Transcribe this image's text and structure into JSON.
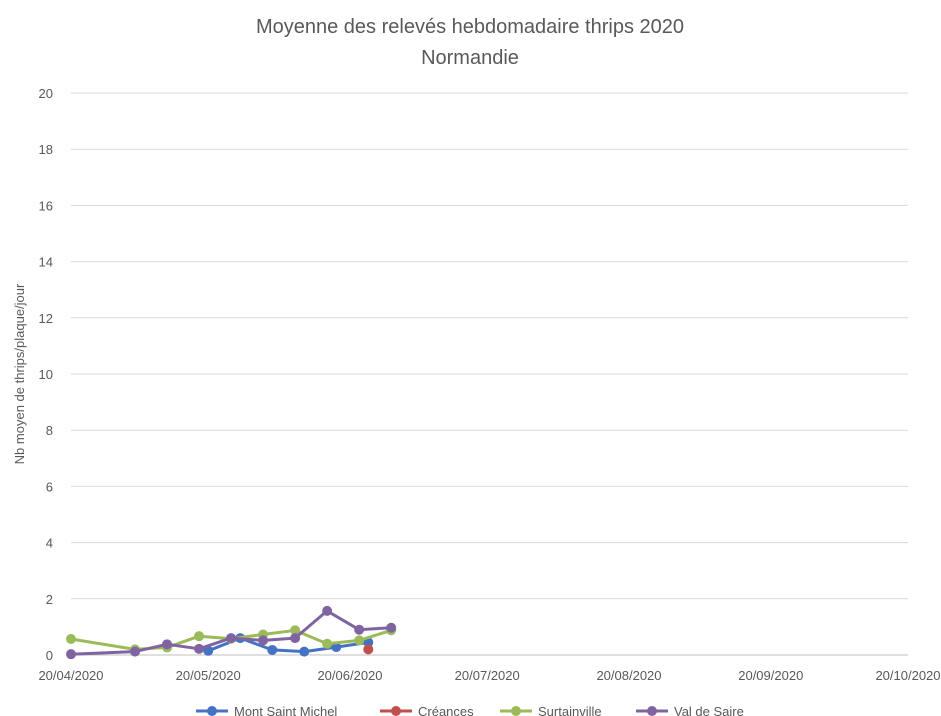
{
  "chart_data": {
    "type": "line",
    "title": "Moyenne des relevés hebdomadaire thrips 2020",
    "subtitle": "Normandie",
    "xlabel": "",
    "ylabel": "Nb moyen de thrips/plaque/jour",
    "x_tick_labels": [
      "20/04/2020",
      "20/05/2020",
      "20/06/2020",
      "20/07/2020",
      "20/08/2020",
      "20/09/2020",
      "20/10/2020"
    ],
    "x_ticks": [
      "2020-04-20",
      "2020-05-20",
      "2020-06-20",
      "2020-07-20",
      "2020-08-20",
      "2020-09-20",
      "2020-10-20"
    ],
    "xlim": [
      "2020-04-20",
      "2020-10-20"
    ],
    "ylim": [
      0,
      20
    ],
    "y_ticks": [
      0,
      2,
      4,
      6,
      8,
      10,
      12,
      14,
      16,
      18,
      20
    ],
    "y_tick_labels": [
      "0",
      "2",
      "4",
      "6",
      "8",
      "10",
      "12",
      "14",
      "16",
      "18",
      "20"
    ],
    "grid": "horizontal",
    "legend_position": "bottom",
    "series": [
      {
        "name": "Mont Saint Michel",
        "color": "#4472C4",
        "points": [
          {
            "x": "2020-05-20",
            "y": 0.15
          },
          {
            "x": "2020-05-27",
            "y": 0.6
          },
          {
            "x": "2020-06-03",
            "y": 0.18
          },
          {
            "x": "2020-06-10",
            "y": 0.12
          },
          {
            "x": "2020-06-17",
            "y": 0.28
          },
          {
            "x": "2020-06-24",
            "y": 0.45
          }
        ]
      },
      {
        "name": "Créances",
        "color": "#C0504D",
        "points": [
          {
            "x": "2020-06-24",
            "y": 0.2
          }
        ]
      },
      {
        "name": "Surtainville",
        "color": "#9BBB59",
        "points": [
          {
            "x": "2020-04-20",
            "y": 0.57
          },
          {
            "x": "2020-05-04",
            "y": 0.2
          },
          {
            "x": "2020-05-11",
            "y": 0.27
          },
          {
            "x": "2020-05-18",
            "y": 0.67
          },
          {
            "x": "2020-05-25",
            "y": 0.58
          },
          {
            "x": "2020-06-01",
            "y": 0.73
          },
          {
            "x": "2020-06-08",
            "y": 0.88
          },
          {
            "x": "2020-06-15",
            "y": 0.4
          },
          {
            "x": "2020-06-22",
            "y": 0.52
          },
          {
            "x": "2020-06-29",
            "y": 0.88
          }
        ]
      },
      {
        "name": "Val de Saire",
        "color": "#8064A2",
        "points": [
          {
            "x": "2020-04-20",
            "y": 0.03
          },
          {
            "x": "2020-05-04",
            "y": 0.12
          },
          {
            "x": "2020-05-11",
            "y": 0.38
          },
          {
            "x": "2020-05-18",
            "y": 0.22
          },
          {
            "x": "2020-05-25",
            "y": 0.6
          },
          {
            "x": "2020-06-01",
            "y": 0.52
          },
          {
            "x": "2020-06-08",
            "y": 0.6
          },
          {
            "x": "2020-06-15",
            "y": 1.57
          },
          {
            "x": "2020-06-22",
            "y": 0.9
          },
          {
            "x": "2020-06-29",
            "y": 0.97
          }
        ]
      }
    ]
  }
}
